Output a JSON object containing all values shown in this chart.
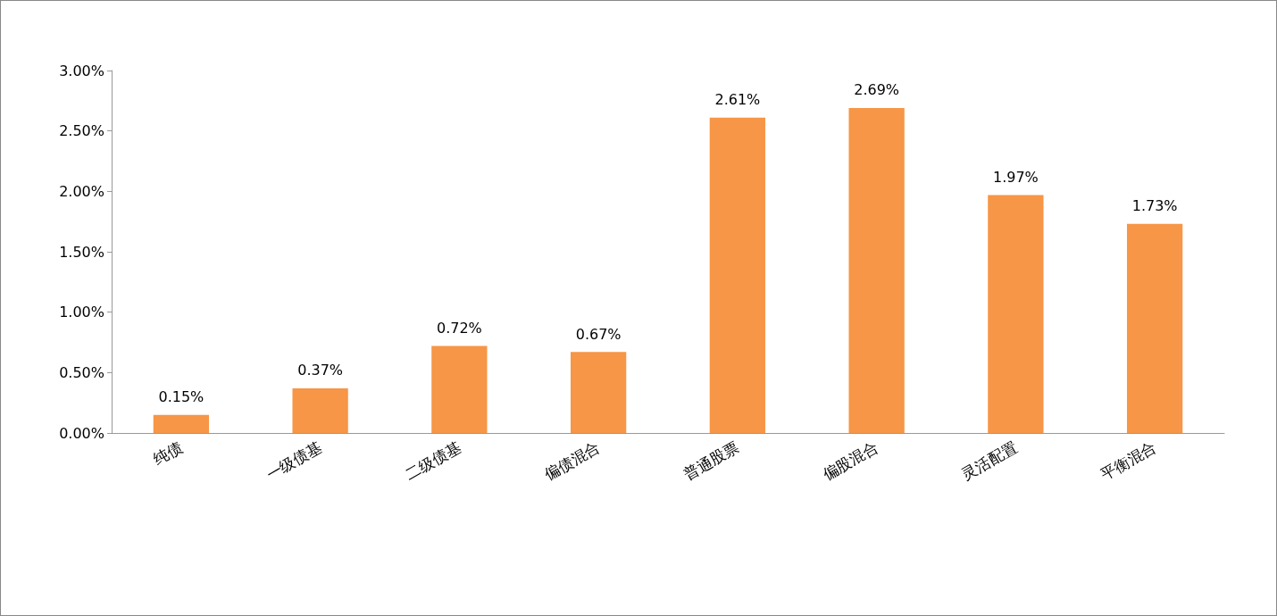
{
  "chart_data": {
    "type": "bar",
    "categories": [
      "纯债",
      "一级债基",
      "二级债基",
      "偏债混合",
      "普通股票",
      "偏股混合",
      "灵活配置",
      "平衡混合"
    ],
    "values": [
      0.15,
      0.37,
      0.72,
      0.67,
      2.61,
      2.69,
      1.97,
      1.73
    ],
    "value_labels": [
      "0.15%",
      "0.37%",
      "0.72%",
      "0.67%",
      "2.61%",
      "2.69%",
      "1.97%",
      "1.73%"
    ],
    "color": "#f79646",
    "ylim": [
      0,
      3
    ],
    "yticks": [
      {
        "value": 0,
        "label": "0.00%"
      },
      {
        "value": 0.5,
        "label": "0.50%"
      },
      {
        "value": 1,
        "label": "1.00%"
      },
      {
        "value": 1.5,
        "label": "1.50%"
      },
      {
        "value": 2,
        "label": "2.00%"
      },
      {
        "value": 2.5,
        "label": "2.50%"
      },
      {
        "value": 3,
        "label": "3.00%"
      }
    ],
    "grid": false
  }
}
